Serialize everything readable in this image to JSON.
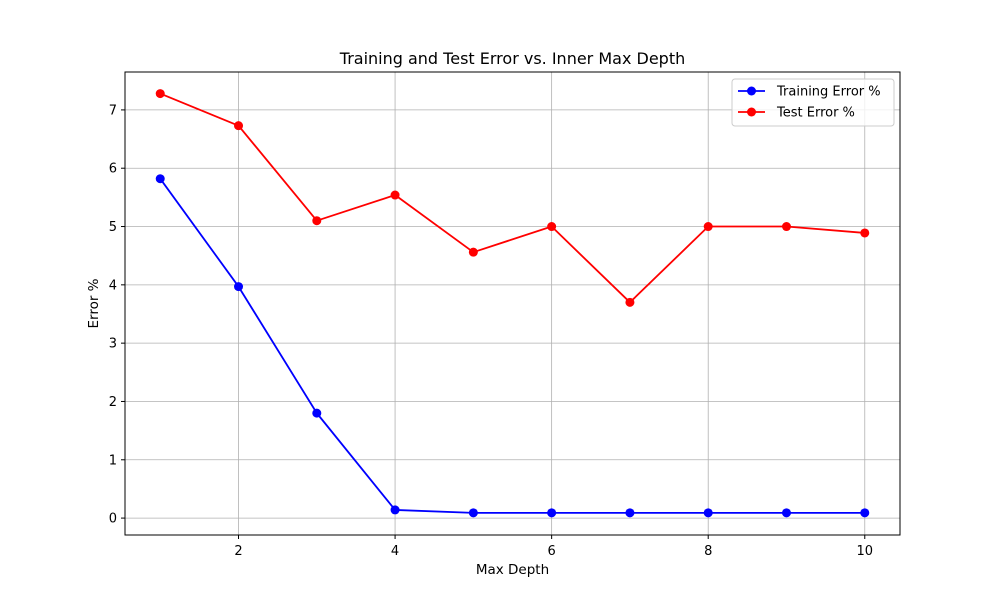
{
  "chart_data": {
    "type": "line",
    "title": "Training and Test Error vs. Inner Max Depth",
    "xlabel": "Max Depth",
    "ylabel": "Error %",
    "x": [
      1,
      2,
      3,
      4,
      5,
      6,
      7,
      8,
      9,
      10
    ],
    "xlim": [
      0.55,
      10.45
    ],
    "ylim": [
      -0.29,
      7.65
    ],
    "xticks": [
      2,
      4,
      6,
      8,
      10
    ],
    "yticks": [
      0,
      1,
      2,
      3,
      4,
      5,
      6,
      7
    ],
    "grid": true,
    "legend_position": "top-right",
    "series": [
      {
        "name": "Training Error %",
        "color": "#0000ff",
        "marker": "circle",
        "values": [
          5.82,
          3.97,
          1.8,
          0.14,
          0.09,
          0.09,
          0.09,
          0.09,
          0.09,
          0.09
        ]
      },
      {
        "name": "Test Error %",
        "color": "#ff0000",
        "marker": "circle",
        "values": [
          7.28,
          6.73,
          5.1,
          5.54,
          4.56,
          5.0,
          3.7,
          5.0,
          5.0,
          4.89
        ]
      }
    ]
  }
}
